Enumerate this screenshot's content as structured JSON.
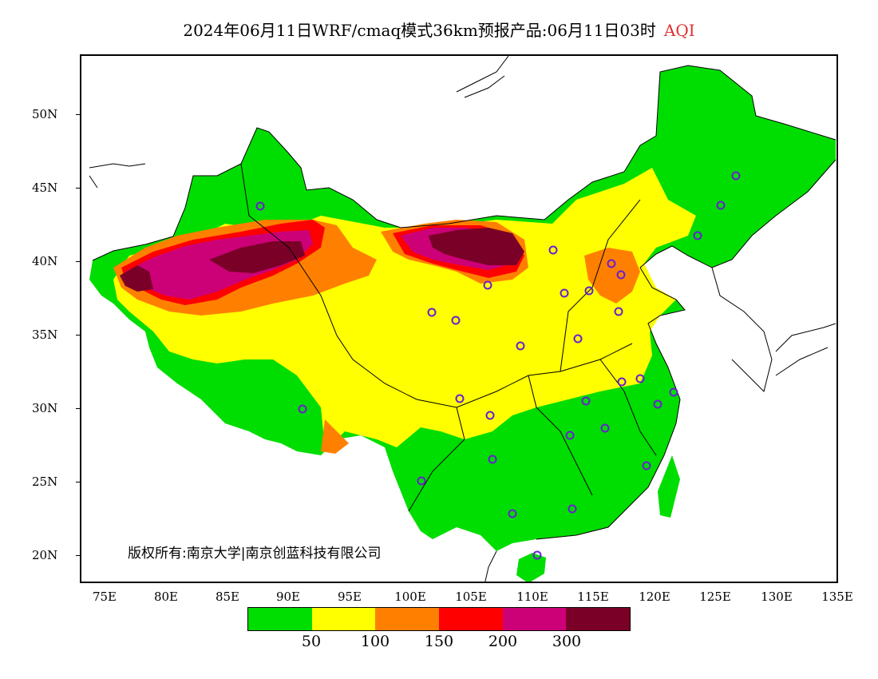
{
  "header": {
    "title": "2024年06月11日WRF/cmaq模式36km预报产品:06月11日03时",
    "variable": "AQI"
  },
  "map": {
    "lat_labels": [
      "50N",
      "45N",
      "40N",
      "35N",
      "30N",
      "25N",
      "20N"
    ],
    "lon_labels": [
      "75E",
      "80E",
      "85E",
      "90E",
      "95E",
      "100E",
      "105E",
      "110E",
      "115E",
      "120E",
      "125E",
      "130E",
      "135E"
    ],
    "copyright": "版权所有:南京大学|南京创蓝科技有限公司"
  },
  "legend": {
    "colors": [
      "#00dd00",
      "#ffff00",
      "#ff8000",
      "#ff0000",
      "#cc0077",
      "#7a0027"
    ],
    "labels": [
      "50",
      "100",
      "150",
      "200",
      "300"
    ]
  }
}
